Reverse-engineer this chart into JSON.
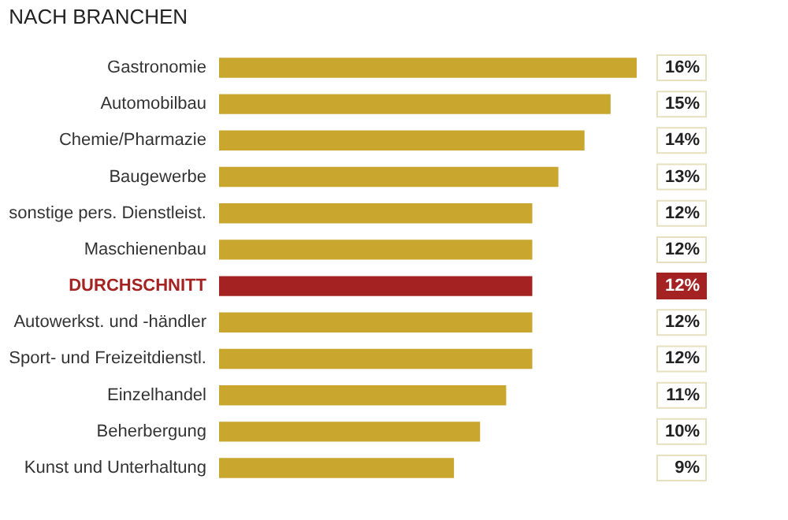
{
  "chart_data": {
    "type": "bar",
    "orientation": "horizontal",
    "title": "NACH BRANCHEN",
    "categories": [
      "Gastronomie",
      "Automobilbau",
      "Chemie/Pharmazie",
      "Baugewerbe",
      "sonstige pers. Dienstleist.",
      "Maschienenbau",
      "DURCHSCHNITT",
      "Autowerkst. und -händler",
      "Sport- und Freizeitdienstl.",
      "Einzelhandel",
      "Beherbergung",
      "Kunst und Unterhaltung"
    ],
    "values": [
      16,
      15,
      14,
      13,
      12,
      12,
      12,
      12,
      12,
      11,
      10,
      9
    ],
    "colors": [
      "#c9a72f",
      "#c9a72f",
      "#c9a72f",
      "#c9a72f",
      "#c9a72f",
      "#c9a72f",
      "#a52222",
      "#c9a72f",
      "#c9a72f",
      "#c9a72f",
      "#c9a72f",
      "#c9a72f"
    ],
    "value_labels": [
      "16%",
      "15%",
      "14%",
      "13%",
      "12%",
      "12%",
      "12%",
      "12%",
      "12%",
      "11%",
      "10%",
      "9%"
    ],
    "grid": false
  }
}
